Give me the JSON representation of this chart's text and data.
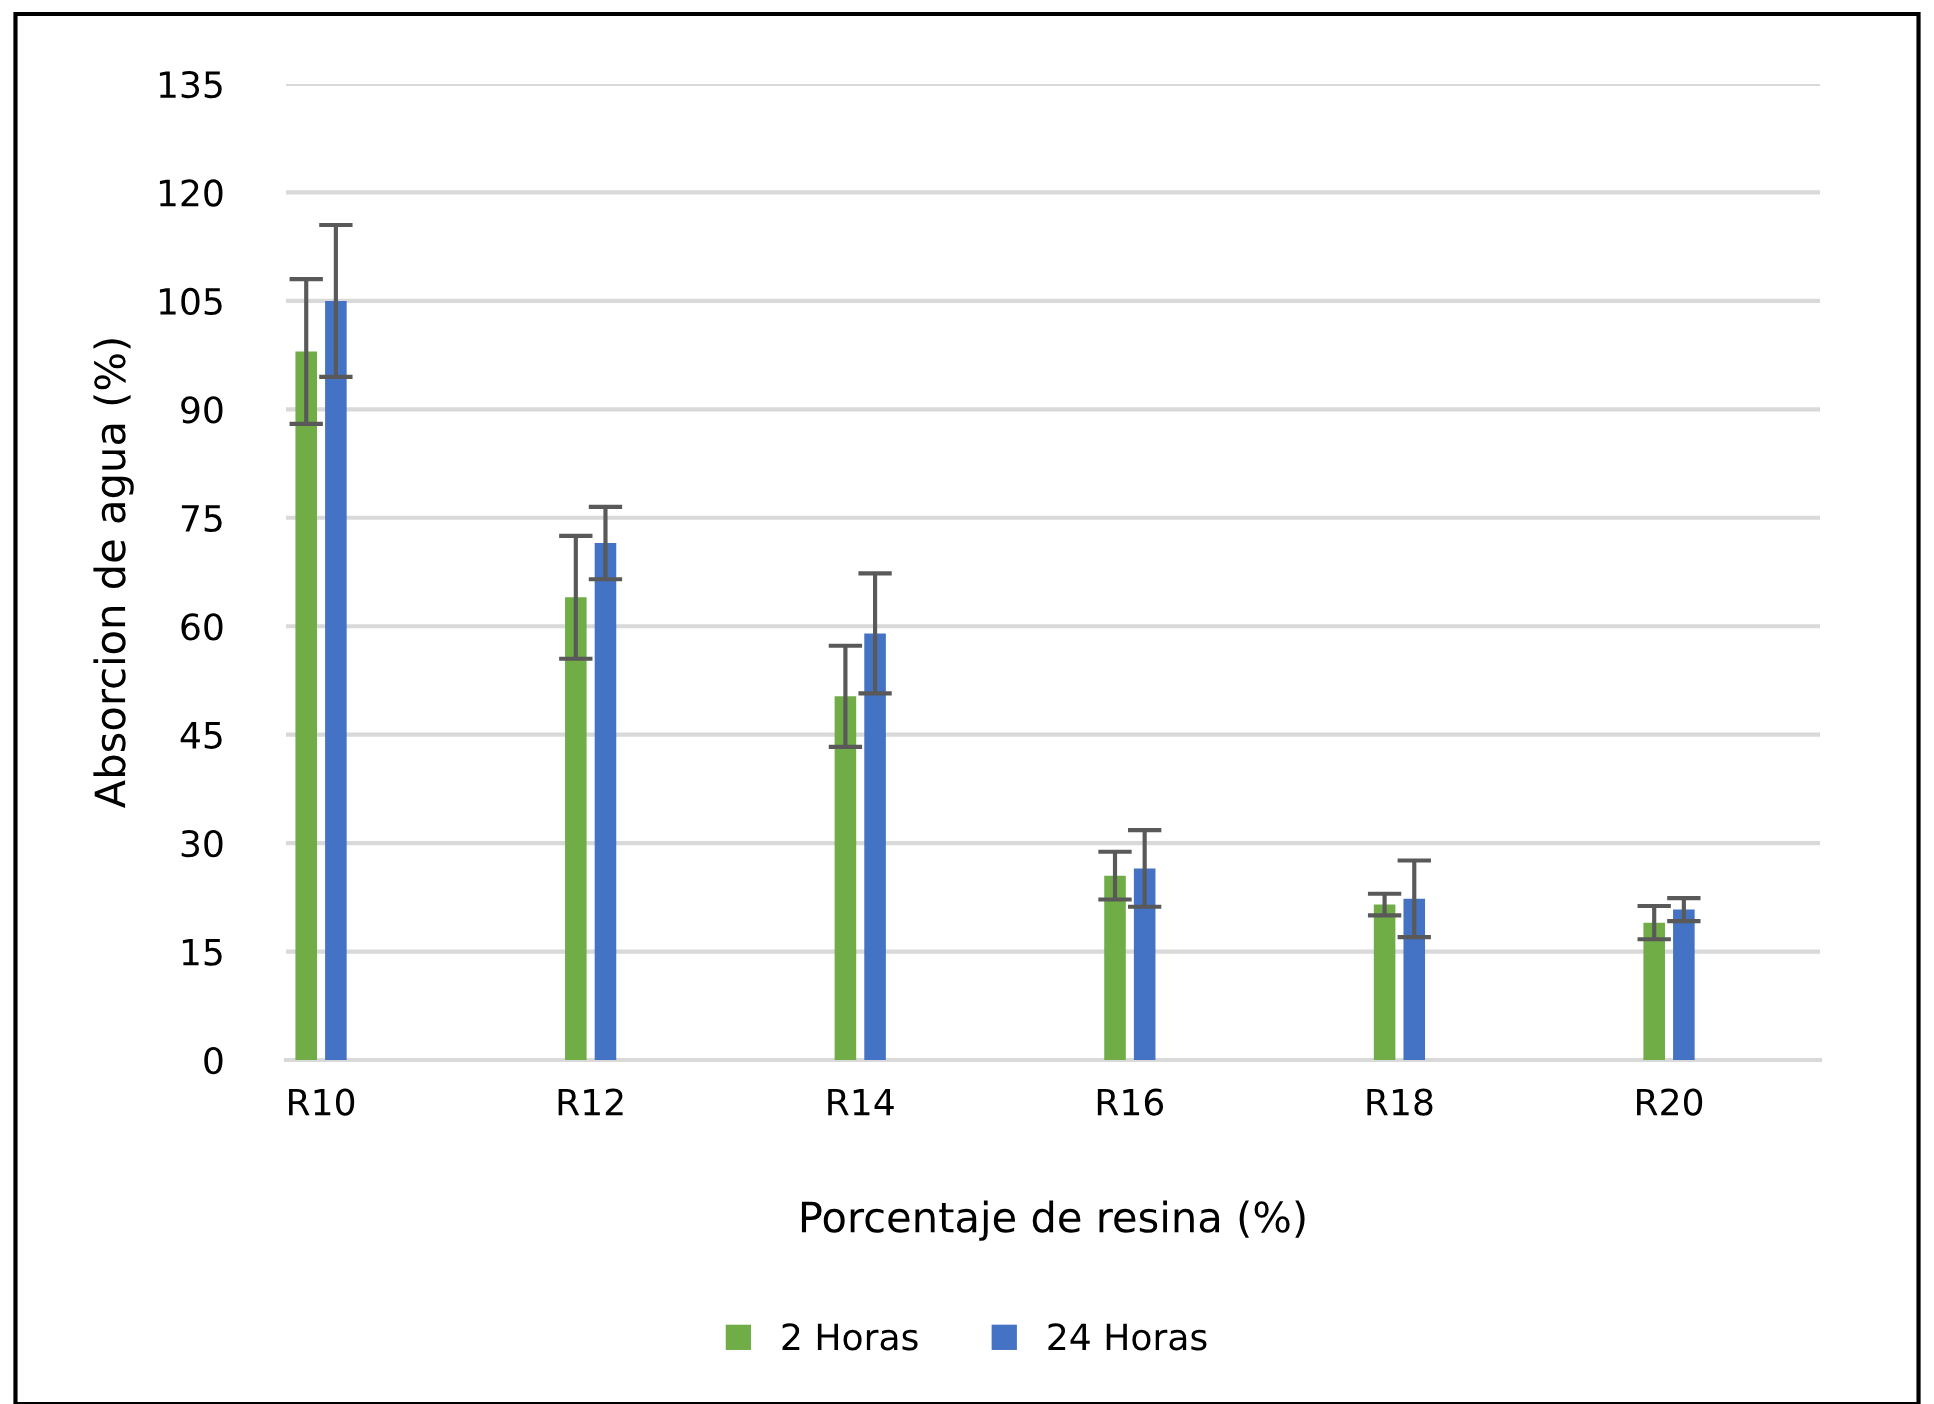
{
  "chart_data": {
    "type": "bar",
    "xlabel": "Porcentaje de resina (%)",
    "ylabel": "Absorcion de agua (%)",
    "categories": [
      "R10",
      "R12",
      "R14",
      "R16",
      "R18",
      "R20"
    ],
    "series": [
      {
        "name": "2 Horas",
        "color": "#70ad47",
        "values": [
          98,
          64,
          50.3,
          25.5,
          21.5,
          19
        ],
        "errors": [
          10,
          8.5,
          7,
          3.3,
          1.5,
          2.3
        ]
      },
      {
        "name": "24 Horas",
        "color": "#4472c4",
        "values": [
          105,
          71.5,
          59,
          26.5,
          22.3,
          20.8
        ],
        "errors": [
          10.5,
          5,
          8.3,
          5.3,
          5.3,
          1.6
        ]
      }
    ],
    "ylim": [
      0,
      135
    ],
    "yticks": [
      0,
      15,
      30,
      45,
      60,
      75,
      90,
      105,
      120,
      135
    ],
    "grid": "y",
    "legend": "bottom"
  }
}
